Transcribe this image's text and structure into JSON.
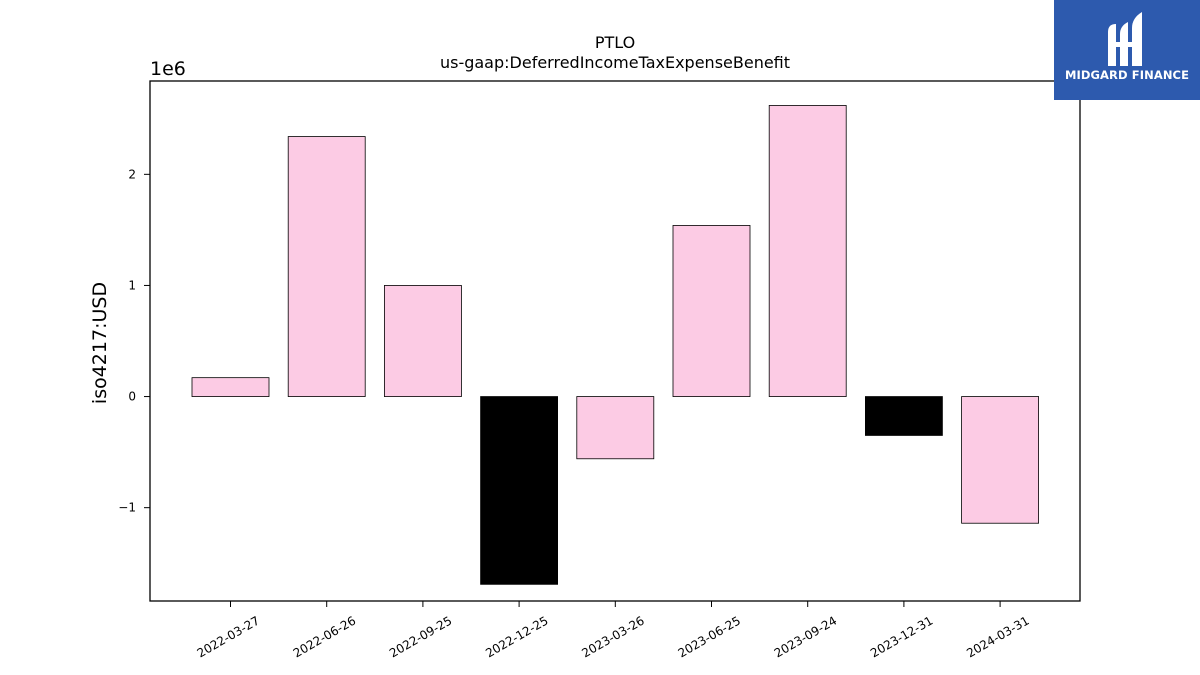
{
  "chart_data": {
    "type": "bar",
    "title": "PTLO",
    "subtitle": "us-gaap:DeferredIncomeTaxExpenseBenefit",
    "ylabel": "iso4217:USD",
    "xlabel": "",
    "scale_label": "1e6",
    "scale": 1000000,
    "categories": [
      "2022-03-27",
      "2022-06-26",
      "2022-09-25",
      "2022-12-25",
      "2023-03-26",
      "2023-06-25",
      "2023-09-24",
      "2023-12-31",
      "2024-03-31"
    ],
    "values": [
      170000,
      2340000,
      1000000,
      -1690000,
      -560000,
      1540000,
      2620000,
      -350000,
      -1140000
    ],
    "bar_colors": [
      "#fccbe4",
      "#fccbe4",
      "#fccbe4",
      "#000000",
      "#fccbe4",
      "#fccbe4",
      "#fccbe4",
      "#000000",
      "#fccbe4"
    ],
    "yticks": [
      -1,
      0,
      1,
      2
    ],
    "ytick_labels": [
      "−1",
      "0",
      "1",
      "2"
    ],
    "ylim": [
      -1.84,
      2.84
    ],
    "grid": false
  },
  "logo": {
    "text": "MIDGARD FINANCE",
    "color": "#2d5aae"
  }
}
